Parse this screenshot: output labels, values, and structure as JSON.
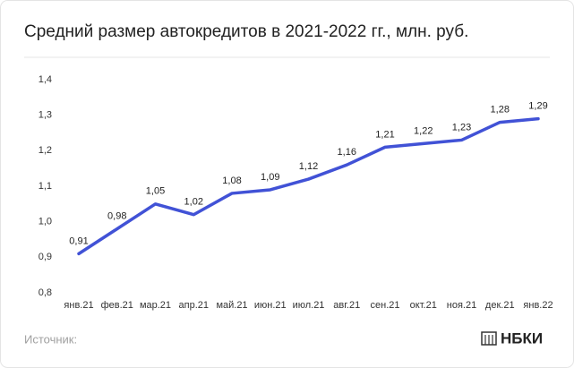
{
  "chart_data": {
    "type": "line",
    "title": "Средний размер автокредитов в 2021-2022 гг., млн. руб.",
    "categories": [
      "янв.21",
      "фев.21",
      "мар.21",
      "апр.21",
      "май.21",
      "июн.21",
      "июл.21",
      "авг.21",
      "сен.21",
      "окт.21",
      "ноя.21",
      "дек.21",
      "янв.22"
    ],
    "series": [
      {
        "name": "Средний размер автокредитов",
        "color": "#4152d6",
        "values": [
          0.91,
          0.98,
          1.05,
          1.02,
          1.08,
          1.09,
          1.12,
          1.16,
          1.21,
          1.22,
          1.23,
          1.28,
          1.29
        ],
        "value_labels": [
          "0,91",
          "0,98",
          "1,05",
          "1,02",
          "1,08",
          "1,09",
          "1,12",
          "1,16",
          "1,21",
          "1,22",
          "1,23",
          "1,28",
          "1,29"
        ]
      }
    ],
    "ylim": [
      0.8,
      1.4
    ],
    "yticks": [
      {
        "value": 0.8,
        "label": "0,8"
      },
      {
        "value": 0.9,
        "label": "0,9"
      },
      {
        "value": 1.0,
        "label": "1,0"
      },
      {
        "value": 1.1,
        "label": "1,1"
      },
      {
        "value": 1.2,
        "label": "1,2"
      },
      {
        "value": 1.3,
        "label": "1,3"
      },
      {
        "value": 1.4,
        "label": "1,4"
      }
    ],
    "source": "Источник:",
    "logo": "НБКИ"
  }
}
